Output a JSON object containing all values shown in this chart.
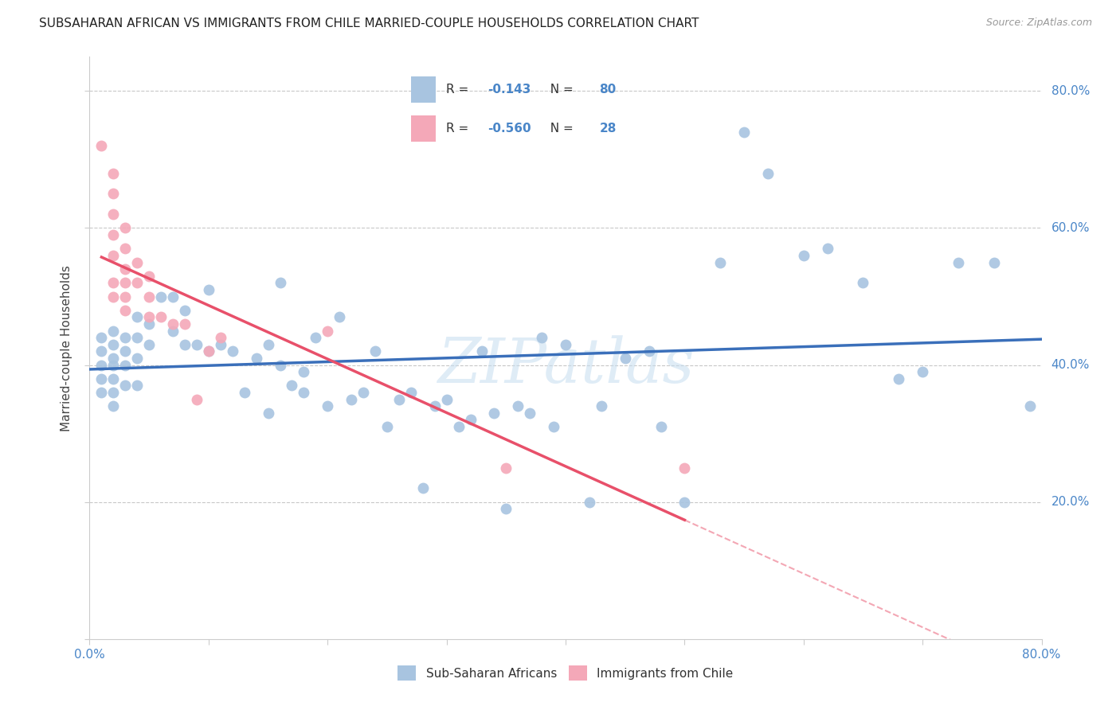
{
  "title": "SUBSAHARAN AFRICAN VS IMMIGRANTS FROM CHILE MARRIED-COUPLE HOUSEHOLDS CORRELATION CHART",
  "source": "Source: ZipAtlas.com",
  "ylabel": "Married-couple Households",
  "xlim": [
    0.0,
    0.8
  ],
  "ylim": [
    0.0,
    0.85
  ],
  "blue_R": -0.143,
  "blue_N": 80,
  "pink_R": -0.56,
  "pink_N": 28,
  "blue_color": "#a8c4e0",
  "pink_color": "#f4a8b8",
  "blue_line_color": "#3a6fba",
  "pink_line_color": "#e8506a",
  "legend_label_blue": "Sub-Saharan Africans",
  "legend_label_pink": "Immigrants from Chile",
  "blue_points_x": [
    0.01,
    0.01,
    0.01,
    0.01,
    0.01,
    0.02,
    0.02,
    0.02,
    0.02,
    0.02,
    0.02,
    0.02,
    0.03,
    0.03,
    0.03,
    0.03,
    0.04,
    0.04,
    0.04,
    0.04,
    0.05,
    0.05,
    0.06,
    0.07,
    0.07,
    0.08,
    0.08,
    0.09,
    0.1,
    0.1,
    0.11,
    0.12,
    0.13,
    0.14,
    0.15,
    0.15,
    0.16,
    0.16,
    0.17,
    0.18,
    0.18,
    0.19,
    0.2,
    0.21,
    0.22,
    0.23,
    0.24,
    0.25,
    0.26,
    0.27,
    0.28,
    0.29,
    0.3,
    0.31,
    0.32,
    0.33,
    0.34,
    0.35,
    0.36,
    0.37,
    0.38,
    0.39,
    0.4,
    0.42,
    0.43,
    0.45,
    0.47,
    0.48,
    0.5,
    0.53,
    0.55,
    0.57,
    0.6,
    0.62,
    0.65,
    0.68,
    0.7,
    0.73,
    0.76,
    0.79
  ],
  "blue_points_y": [
    0.44,
    0.42,
    0.4,
    0.38,
    0.36,
    0.45,
    0.43,
    0.41,
    0.4,
    0.38,
    0.36,
    0.34,
    0.44,
    0.42,
    0.4,
    0.37,
    0.47,
    0.44,
    0.41,
    0.37,
    0.46,
    0.43,
    0.5,
    0.5,
    0.45,
    0.48,
    0.43,
    0.43,
    0.51,
    0.42,
    0.43,
    0.42,
    0.36,
    0.41,
    0.43,
    0.33,
    0.52,
    0.4,
    0.37,
    0.39,
    0.36,
    0.44,
    0.34,
    0.47,
    0.35,
    0.36,
    0.42,
    0.31,
    0.35,
    0.36,
    0.22,
    0.34,
    0.35,
    0.31,
    0.32,
    0.42,
    0.33,
    0.19,
    0.34,
    0.33,
    0.44,
    0.31,
    0.43,
    0.2,
    0.34,
    0.41,
    0.42,
    0.31,
    0.2,
    0.55,
    0.74,
    0.68,
    0.56,
    0.57,
    0.52,
    0.38,
    0.39,
    0.55,
    0.55,
    0.34
  ],
  "pink_points_x": [
    0.01,
    0.02,
    0.02,
    0.02,
    0.02,
    0.02,
    0.02,
    0.02,
    0.03,
    0.03,
    0.03,
    0.03,
    0.03,
    0.03,
    0.04,
    0.04,
    0.05,
    0.05,
    0.05,
    0.06,
    0.07,
    0.08,
    0.09,
    0.1,
    0.11,
    0.2,
    0.35,
    0.5
  ],
  "pink_points_y": [
    0.72,
    0.68,
    0.65,
    0.62,
    0.59,
    0.56,
    0.52,
    0.5,
    0.6,
    0.57,
    0.54,
    0.52,
    0.5,
    0.48,
    0.55,
    0.52,
    0.53,
    0.5,
    0.47,
    0.47,
    0.46,
    0.46,
    0.35,
    0.42,
    0.44,
    0.45,
    0.25,
    0.25
  ],
  "watermark": "ZIPatlas",
  "grid_color": "#c8c8c8",
  "background_color": "#ffffff",
  "accent_color": "#4a86c8"
}
